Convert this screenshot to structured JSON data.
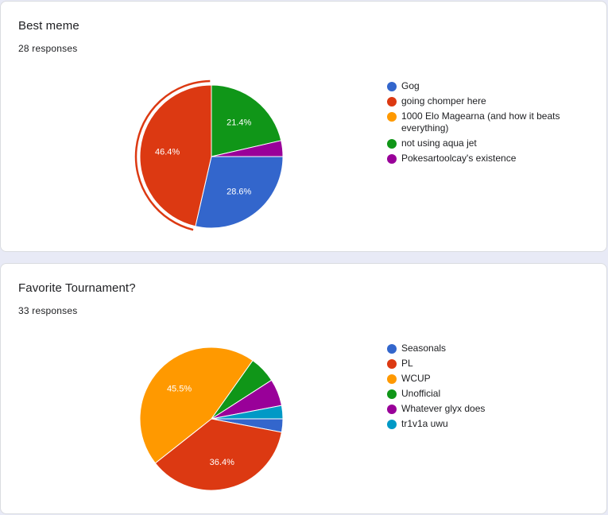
{
  "chart_data": [
    {
      "type": "pie",
      "title": "Best meme",
      "subtitle": "28 responses",
      "categories": [
        "Gog",
        "going chomper here",
        "1000 Elo Magearna (and how it beats everything)",
        "not using aqua jet",
        "Pokesartoolcay's existence"
      ],
      "values": [
        28.6,
        46.4,
        0,
        21.4,
        3.6
      ],
      "colors": [
        "#3366cc",
        "#dc3912",
        "#ff9900",
        "#109618",
        "#990099"
      ],
      "data_labels": [
        "28.6%",
        "46.4%",
        "",
        "21.4%",
        ""
      ],
      "highlighted_slice": "going chomper here",
      "legend_position": "right"
    },
    {
      "type": "pie",
      "title": "Favorite Tournament?",
      "subtitle": "33 responses",
      "categories": [
        "Seasonals",
        "PL",
        "WCUP",
        "Unofficial",
        "Whatever glyx does",
        "tr1v1a uwu"
      ],
      "values": [
        3.0,
        36.4,
        45.5,
        6.1,
        6.1,
        3.0
      ],
      "colors": [
        "#3366cc",
        "#dc3912",
        "#ff9900",
        "#109618",
        "#990099",
        "#0099c6"
      ],
      "data_labels": [
        "",
        "36.4%",
        "45.5%",
        "",
        "",
        ""
      ],
      "legend_position": "right"
    }
  ]
}
